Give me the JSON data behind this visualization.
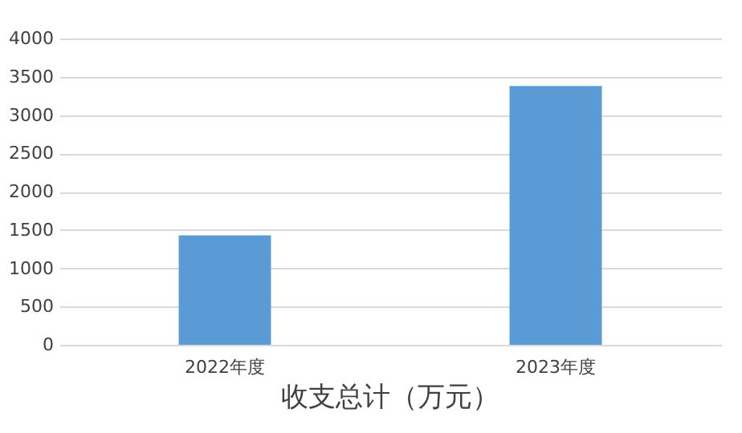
{
  "chart_data": {
    "type": "bar",
    "title": "收支总计（万元）",
    "categories": [
      "2022年度",
      "2023年度"
    ],
    "series": [
      {
        "color": "#5b9bd5",
        "values": [
          1430,
          3380
        ]
      }
    ],
    "ylim": [
      0,
      4000
    ],
    "yticks": [
      0,
      500,
      1000,
      1500,
      2000,
      2500,
      3000,
      3500,
      4000
    ],
    "grid": "y"
  }
}
